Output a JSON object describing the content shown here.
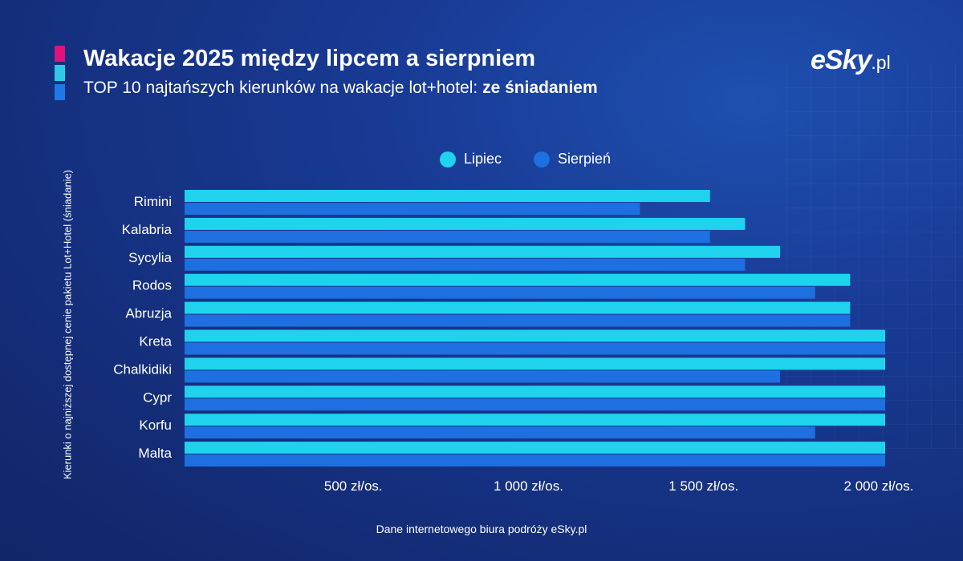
{
  "header": {
    "title": "Wakacje 2025 między lipcem a sierpniem",
    "subtitle_regular": "TOP 10 najtańszych kierunków na wakacje lot+hotel: ",
    "subtitle_bold": "ze śniadaniem"
  },
  "logo": {
    "main": "eSky",
    "suffix": ".pl"
  },
  "footer": {
    "source": "Dane internetowego biura podróży eSky.pl"
  },
  "colors": {
    "lipiec": "#1fd3ee",
    "sierpien": "#1e6fe0",
    "accent_pink": "#e2127a",
    "accent_cyan": "#2fc8e6",
    "accent_blue": "#1f78e8"
  },
  "chart_data": {
    "type": "bar",
    "orientation": "horizontal",
    "ylabel": "Kierunki o najniższej dostępnej cenie pakietu Lot+Hotel (śniadanie)",
    "xlabel": "",
    "categories": [
      "Rimini",
      "Kalabria",
      "Sycylia",
      "Rodos",
      "Abruzja",
      "Kreta",
      "Chalkidiki",
      "Cypr",
      "Korfu",
      "Malta"
    ],
    "series": [
      {
        "name": "Lipiec",
        "values": [
          1500,
          1600,
          1700,
          1900,
          1900,
          2000,
          2000,
          2000,
          2000,
          2000
        ]
      },
      {
        "name": "Sierpień",
        "values": [
          1300,
          1500,
          1600,
          1800,
          1900,
          2000,
          1700,
          2000,
          1800,
          2000
        ]
      }
    ],
    "xlim": [
      0,
      2000
    ],
    "xticks": [
      {
        "value": 500,
        "label": "500 zł/os."
      },
      {
        "value": 1000,
        "label": "1 000 zł/os."
      },
      {
        "value": 1500,
        "label": "1 500 zł/os."
      },
      {
        "value": 2000,
        "label": "2 000 zł/os."
      }
    ],
    "legend_position": "top-center"
  }
}
